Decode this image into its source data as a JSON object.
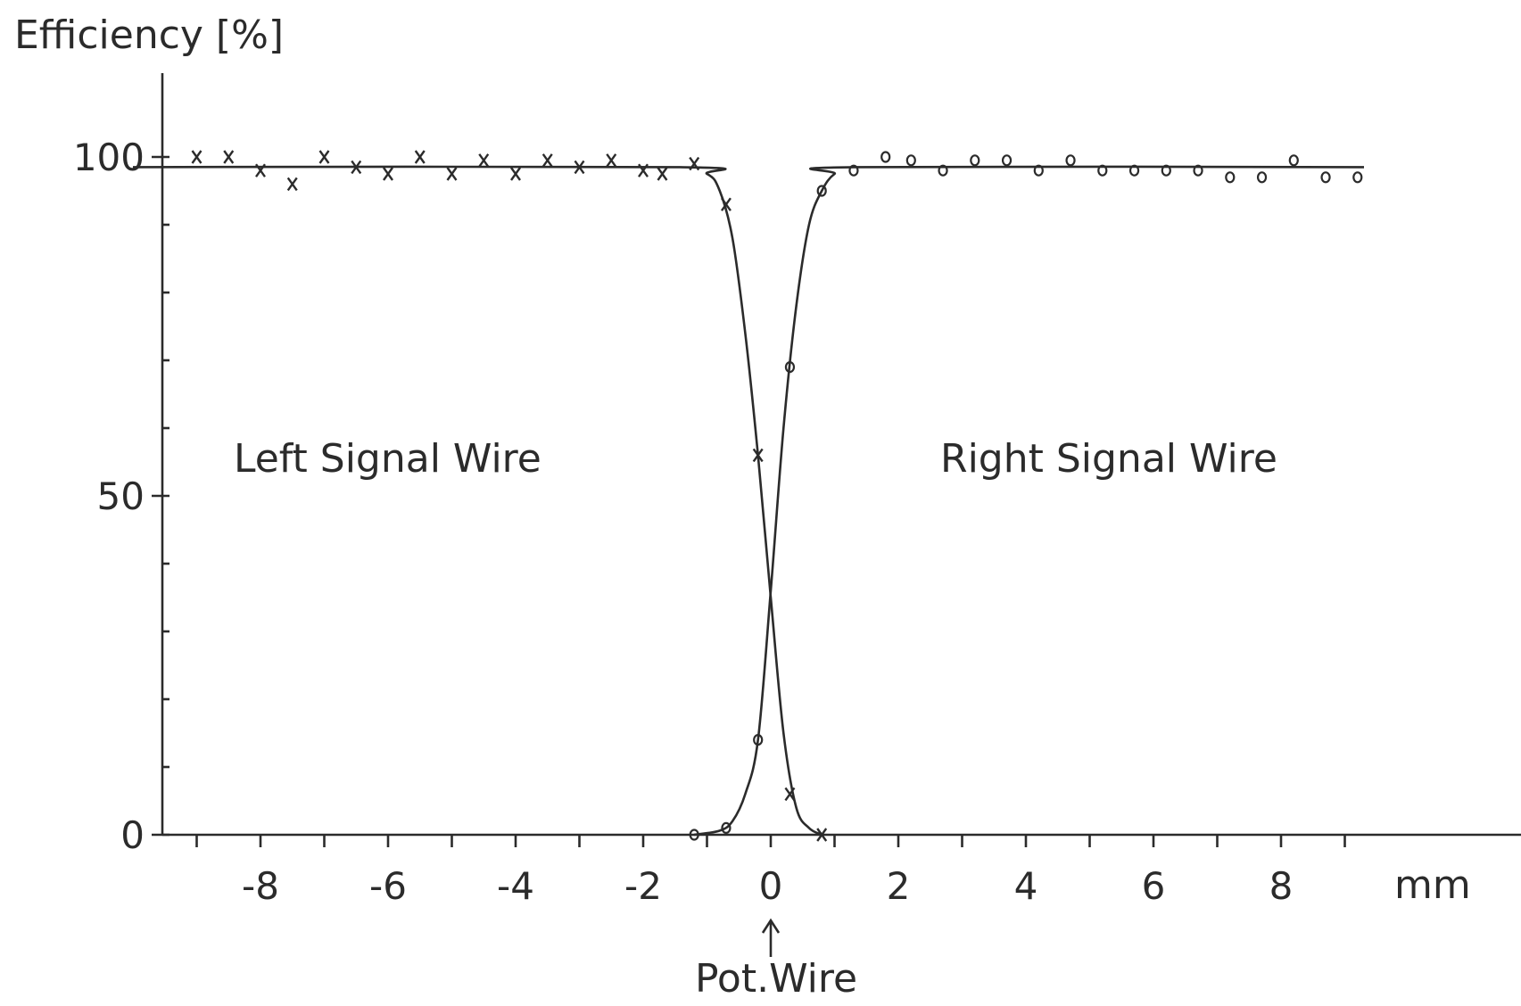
{
  "chart_data": {
    "type": "line",
    "ylabel": "Efficiency [%]",
    "xlabel": "mm",
    "xlim": [
      -10.0,
      11.0
    ],
    "ylim": [
      0,
      110
    ],
    "x_ticks": [
      -8,
      -6,
      -4,
      -2,
      0,
      2,
      4,
      6,
      8
    ],
    "y_ticks": [
      0,
      50,
      100
    ],
    "x_tick_labels": [
      "-8",
      "-6",
      "-4",
      "-2",
      "0",
      "2",
      "4",
      "6",
      "8"
    ],
    "y_tick_labels": [
      "0",
      "50",
      "100"
    ],
    "annotations": {
      "pot_wire": "Pot.Wire",
      "pot_wire_x": 0,
      "left_region": "Left Signal Wire",
      "right_region": "Right Signal Wire"
    },
    "grid": false,
    "series": [
      {
        "marker": "x",
        "points": [
          {
            "x": -9.0,
            "y": 100
          },
          {
            "x": -8.5,
            "y": 100
          },
          {
            "x": -8.0,
            "y": 98
          },
          {
            "x": -7.5,
            "y": 96
          },
          {
            "x": -7.0,
            "y": 100
          },
          {
            "x": -6.5,
            "y": 98.5
          },
          {
            "x": -6.0,
            "y": 97.5
          },
          {
            "x": -5.5,
            "y": 100
          },
          {
            "x": -5.0,
            "y": 97.5
          },
          {
            "x": -4.5,
            "y": 99.5
          },
          {
            "x": -4.0,
            "y": 97.5
          },
          {
            "x": -3.5,
            "y": 99.5
          },
          {
            "x": -3.0,
            "y": 98.5
          },
          {
            "x": -2.5,
            "y": 99.5
          },
          {
            "x": -2.0,
            "y": 98
          },
          {
            "x": -1.7,
            "y": 97.5
          },
          {
            "x": -1.2,
            "y": 99
          },
          {
            "x": -0.7,
            "y": 93
          },
          {
            "x": -0.2,
            "y": 56
          },
          {
            "x": 0.3,
            "y": 6
          },
          {
            "x": 0.8,
            "y": 0
          }
        ],
        "fit": [
          {
            "x": -10.0,
            "y": 98.5
          },
          {
            "x": -1.5,
            "y": 98.5
          },
          {
            "x": -1.0,
            "y": 97.5
          },
          {
            "x": -0.8,
            "y": 95
          },
          {
            "x": -0.6,
            "y": 88
          },
          {
            "x": -0.4,
            "y": 74
          },
          {
            "x": -0.2,
            "y": 56
          },
          {
            "x": 0.0,
            "y": 35
          },
          {
            "x": 0.2,
            "y": 15
          },
          {
            "x": 0.4,
            "y": 4
          },
          {
            "x": 0.6,
            "y": 1
          },
          {
            "x": 0.8,
            "y": 0
          }
        ]
      },
      {
        "marker": "o",
        "points": [
          {
            "x": -1.2,
            "y": 0
          },
          {
            "x": -0.7,
            "y": 1
          },
          {
            "x": -0.2,
            "y": 14
          },
          {
            "x": 0.3,
            "y": 69
          },
          {
            "x": 0.8,
            "y": 95
          },
          {
            "x": 1.3,
            "y": 98
          },
          {
            "x": 1.8,
            "y": 100
          },
          {
            "x": 2.2,
            "y": 99.5
          },
          {
            "x": 2.7,
            "y": 98
          },
          {
            "x": 3.2,
            "y": 99.5
          },
          {
            "x": 3.7,
            "y": 99.5
          },
          {
            "x": 4.2,
            "y": 98
          },
          {
            "x": 4.7,
            "y": 99.5
          },
          {
            "x": 5.2,
            "y": 98
          },
          {
            "x": 5.7,
            "y": 98
          },
          {
            "x": 6.2,
            "y": 98
          },
          {
            "x": 6.7,
            "y": 98
          },
          {
            "x": 7.2,
            "y": 97
          },
          {
            "x": 7.7,
            "y": 97
          },
          {
            "x": 8.2,
            "y": 99.5
          },
          {
            "x": 8.7,
            "y": 97
          },
          {
            "x": 9.2,
            "y": 97
          }
        ],
        "fit": [
          {
            "x": -1.2,
            "y": 0
          },
          {
            "x": -0.8,
            "y": 0.6
          },
          {
            "x": -0.6,
            "y": 2
          },
          {
            "x": -0.4,
            "y": 6
          },
          {
            "x": -0.2,
            "y": 14
          },
          {
            "x": 0.0,
            "y": 36
          },
          {
            "x": 0.2,
            "y": 60
          },
          {
            "x": 0.4,
            "y": 78
          },
          {
            "x": 0.6,
            "y": 90
          },
          {
            "x": 0.8,
            "y": 95
          },
          {
            "x": 1.0,
            "y": 97.5
          },
          {
            "x": 1.3,
            "y": 98.5
          },
          {
            "x": 9.3,
            "y": 98.5
          }
        ]
      }
    ]
  }
}
